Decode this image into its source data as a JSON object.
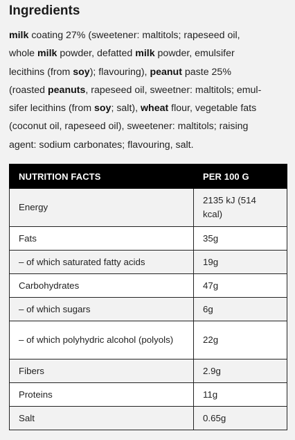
{
  "heading": "Ingredients",
  "ingredients_lines": [
    [
      {
        "t": "milk",
        "b": true
      },
      {
        "t": " coating 27% (sweetener: maltitols; rapeseed oil,",
        "b": false
      }
    ],
    [
      {
        "t": "whole ",
        "b": false
      },
      {
        "t": "milk",
        "b": true
      },
      {
        "t": " powder, defatted ",
        "b": false
      },
      {
        "t": "milk",
        "b": true
      },
      {
        "t": " powder, emulsifer",
        "b": false
      }
    ],
    [
      {
        "t": "lecithins (from ",
        "b": false
      },
      {
        "t": "soy",
        "b": true
      },
      {
        "t": "); flavouring), ",
        "b": false
      },
      {
        "t": "peanut",
        "b": true
      },
      {
        "t": " paste 25%",
        "b": false
      }
    ],
    [
      {
        "t": "(roasted ",
        "b": false
      },
      {
        "t": "peanuts",
        "b": true
      },
      {
        "t": ", rapeseed oil, sweetner: maltitols; emul-",
        "b": false
      }
    ],
    [
      {
        "t": "sifer lecithins (from ",
        "b": false
      },
      {
        "t": "soy",
        "b": true
      },
      {
        "t": "; salt), ",
        "b": false
      },
      {
        "t": "wheat",
        "b": true
      },
      {
        "t": " flour, vegetable fats",
        "b": false
      }
    ],
    [
      {
        "t": "(coconut oil, rapeseed oil), sweetener: maltitols; raising",
        "b": false
      }
    ],
    [
      {
        "t": "agent: sodium carbonates; flavouring, salt.",
        "b": false
      }
    ]
  ],
  "nutrition": {
    "headers": [
      "NUTRITION FACTS",
      "PER 100 G"
    ],
    "rows": [
      {
        "label": "Energy",
        "value": "2135 kJ (514 kcal)",
        "shade": "g",
        "tall": true
      },
      {
        "label": "Fats",
        "value": "35g",
        "shade": "w",
        "tall": false
      },
      {
        "label": "– of which saturated fatty acids",
        "value": "19g",
        "shade": "g",
        "tall": false
      },
      {
        "label": "Carbohydrates",
        "value": "47g",
        "shade": "w",
        "tall": false
      },
      {
        "label": "– of which sugars",
        "value": "6g",
        "shade": "g",
        "tall": false
      },
      {
        "label": "– of which polyhydric alcohol (polyols)",
        "value": "22g",
        "shade": "w",
        "tall": true
      },
      {
        "label": "Fibers",
        "value": "2.9g",
        "shade": "g",
        "tall": false
      },
      {
        "label": "Proteins",
        "value": "11g",
        "shade": "w",
        "tall": false
      },
      {
        "label": "Salt",
        "value": "0.65g",
        "shade": "g",
        "tall": false
      }
    ]
  }
}
